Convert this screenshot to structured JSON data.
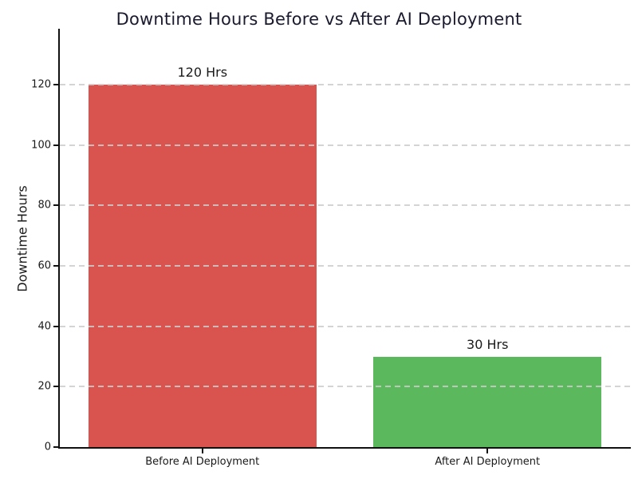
{
  "chart_data": {
    "type": "bar",
    "title": "Downtime Hours Before vs After AI Deployment",
    "xlabel": "",
    "ylabel": "Downtime Hours",
    "categories": [
      "Before AI Deployment",
      "After AI Deployment"
    ],
    "values": [
      120,
      30
    ],
    "bar_labels": [
      "120 Hrs",
      "30 Hrs"
    ],
    "bar_colors": [
      "#d9534f",
      "#5cb85c"
    ],
    "yticks": [
      0,
      20,
      40,
      60,
      80,
      100,
      120
    ],
    "ylim": [
      0,
      138
    ],
    "bar_width_fraction": 0.8,
    "grid": "horizontal-dashed-over-bars",
    "legend": "none",
    "title_color": "#1a1a2e",
    "gridline_color": "#cccccc",
    "spine_color": "#111111",
    "text_color": "#1a1a1a"
  }
}
